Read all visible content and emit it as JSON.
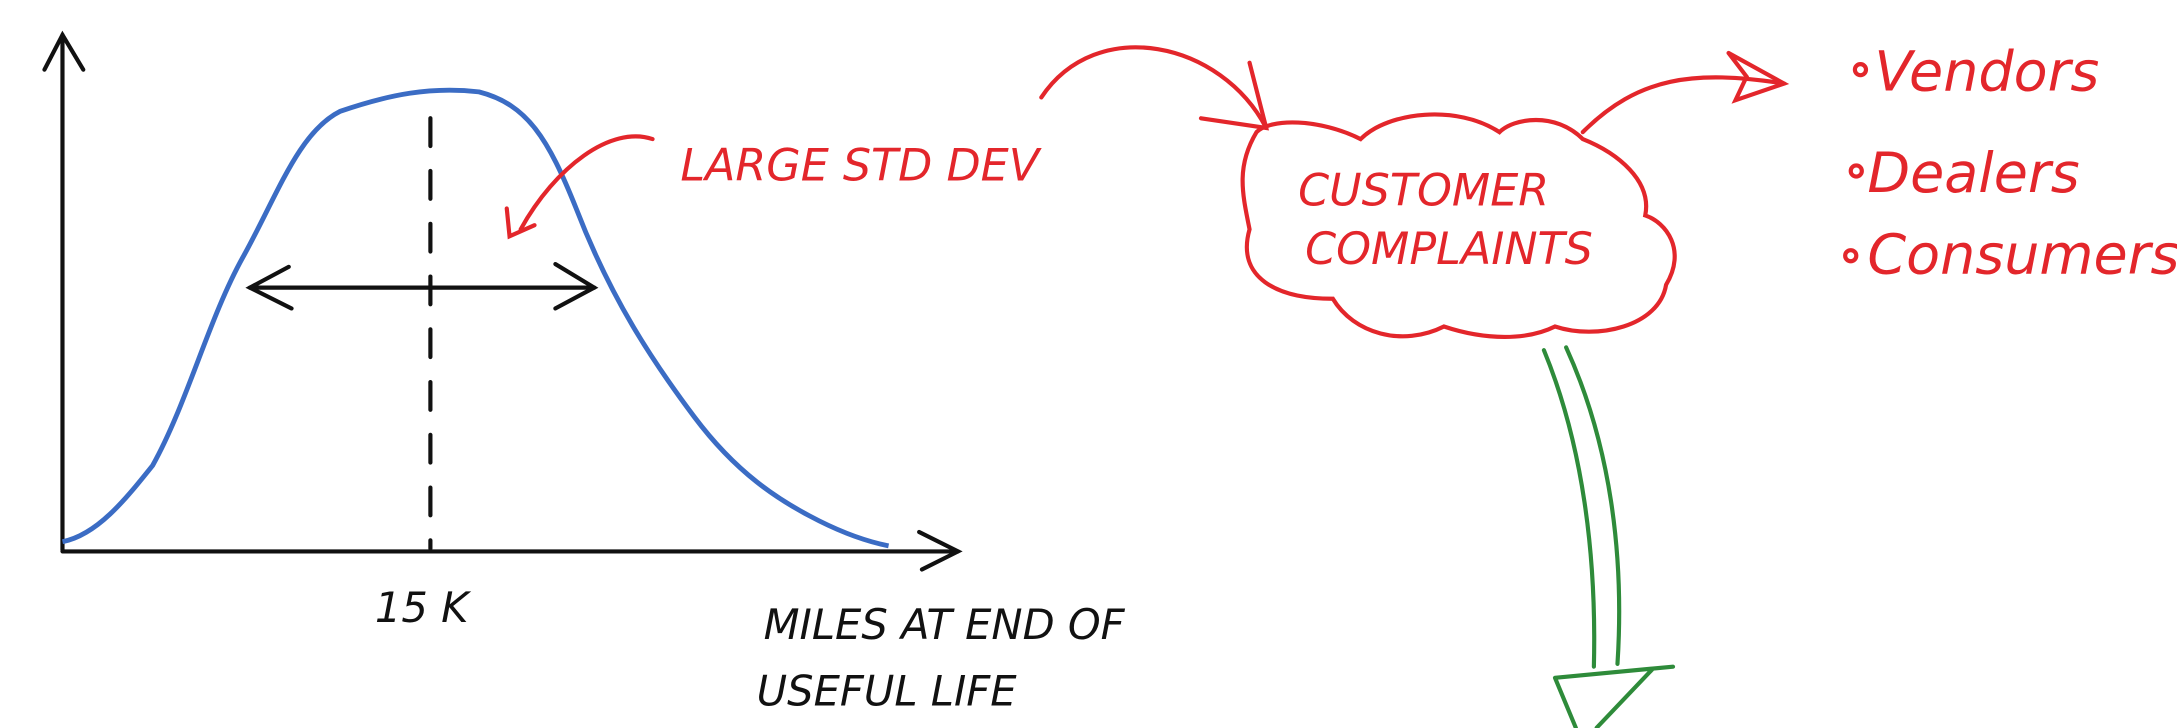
{
  "graph": {
    "tick_label": "15 K",
    "x_label_lines": [
      "MILES AT END OF",
      "USEFUL LIFE"
    ],
    "annotation": "LARGE STD DEV"
  },
  "cloud": {
    "lines": [
      "CUSTOMER",
      "COMPLAINTS"
    ]
  },
  "list": [
    "Vendors",
    "Dealers",
    "Consumers"
  ]
}
